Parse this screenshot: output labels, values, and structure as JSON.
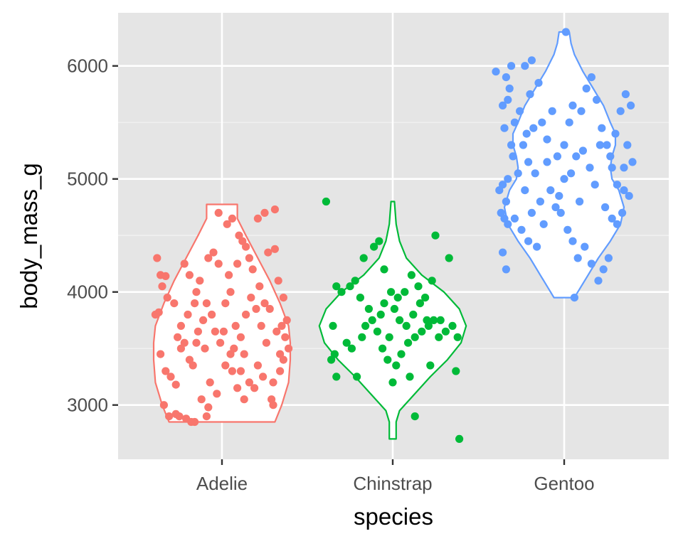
{
  "chart_data": {
    "type": "violin",
    "title": "",
    "xlabel": "species",
    "ylabel": "body_mass_g",
    "categories": [
      "Adelie",
      "Chinstrap",
      "Gentoo"
    ],
    "ylim": [
      2520,
      6470
    ],
    "yticks": [
      3000,
      4000,
      5000,
      6000
    ],
    "ytick_labels": [
      "3000",
      "4000",
      "5000",
      "6000"
    ],
    "grid": true,
    "legend": "none",
    "panel_background": "#e5e5e5",
    "series": [
      {
        "category": "Adelie",
        "color": "#f8766d",
        "range": [
          2850,
          4775
        ],
        "density_profile": [
          [
            2850,
            0.31
          ],
          [
            3000,
            0.35
          ],
          [
            3200,
            0.39
          ],
          [
            3400,
            0.4
          ],
          [
            3550,
            0.4
          ],
          [
            3700,
            0.39
          ],
          [
            3900,
            0.34
          ],
          [
            4100,
            0.28
          ],
          [
            4300,
            0.21
          ],
          [
            4500,
            0.14
          ],
          [
            4650,
            0.09
          ],
          [
            4775,
            0.09
          ]
        ],
        "points": [
          [
            -0.38,
            4300
          ],
          [
            -0.36,
            4150
          ],
          [
            -0.33,
            4140
          ],
          [
            -0.35,
            4050
          ],
          [
            -0.39,
            3800
          ],
          [
            -0.37,
            3820
          ],
          [
            -0.32,
            3950
          ],
          [
            -0.28,
            3900
          ],
          [
            -0.36,
            3450
          ],
          [
            -0.33,
            3300
          ],
          [
            -0.3,
            3250
          ],
          [
            -0.27,
            3180
          ],
          [
            -0.34,
            3000
          ],
          [
            -0.31,
            2900
          ],
          [
            -0.27,
            2920
          ],
          [
            -0.25,
            2900
          ],
          [
            -0.21,
            2880
          ],
          [
            -0.18,
            2850
          ],
          [
            -0.16,
            2850
          ],
          [
            -0.26,
            3600
          ],
          [
            -0.24,
            3700
          ],
          [
            -0.22,
            3550
          ],
          [
            -0.19,
            3400
          ],
          [
            -0.17,
            3350
          ],
          [
            -0.22,
            4250
          ],
          [
            -0.19,
            4150
          ],
          [
            -0.15,
            4000
          ],
          [
            -0.13,
            4100
          ],
          [
            -0.08,
            4300
          ],
          [
            -0.05,
            4350
          ],
          [
            -0.02,
            4700
          ],
          [
            0.03,
            4600
          ],
          [
            0.06,
            4650
          ],
          [
            0.09,
            4250
          ],
          [
            0.12,
            4450
          ],
          [
            0.1,
            4500
          ],
          [
            0.14,
            4400
          ],
          [
            0.21,
            4650
          ],
          [
            0.25,
            4700
          ],
          [
            0.31,
            4730
          ],
          [
            0.27,
            4350
          ],
          [
            0.31,
            4380
          ],
          [
            0.33,
            4100
          ],
          [
            0.36,
            3950
          ],
          [
            0.38,
            3750
          ],
          [
            0.35,
            3700
          ],
          [
            0.37,
            3600
          ],
          [
            0.39,
            3500
          ],
          [
            0.36,
            3400
          ],
          [
            0.34,
            3300
          ],
          [
            0.3,
            3200
          ],
          [
            0.29,
            3050
          ],
          [
            0.3,
            3000
          ],
          [
            0.24,
            3250
          ],
          [
            0.21,
            3350
          ],
          [
            0.19,
            3150
          ],
          [
            0.16,
            3200
          ],
          [
            0.13,
            3050
          ],
          [
            0.11,
            3300
          ],
          [
            0.07,
            3500
          ],
          [
            0.05,
            3450
          ],
          [
            0.02,
            3350
          ],
          [
            -0.01,
            3550
          ],
          [
            -0.04,
            3650
          ],
          [
            -0.06,
            3800
          ],
          [
            -0.09,
            3900
          ],
          [
            -0.11,
            3750
          ],
          [
            -0.14,
            3650
          ],
          [
            -0.1,
            3500
          ],
          [
            -0.07,
            3200
          ],
          [
            -0.03,
            3100
          ],
          [
            -0.12,
            3050
          ],
          [
            -0.08,
            2980
          ],
          [
            -0.09,
            2900
          ],
          [
            0.02,
            3900
          ],
          [
            0.05,
            4000
          ],
          [
            0.08,
            3700
          ],
          [
            0.11,
            3600
          ],
          [
            0.14,
            3800
          ],
          [
            0.17,
            3950
          ],
          [
            0.2,
            3850
          ],
          [
            0.23,
            3700
          ],
          [
            0.26,
            3550
          ],
          [
            0.28,
            3850
          ],
          [
            0.22,
            4050
          ],
          [
            0.18,
            4200
          ],
          [
            0.16,
            4300
          ],
          [
            0.04,
            4150
          ],
          [
            -0.02,
            4250
          ],
          [
            -0.16,
            3900
          ],
          [
            -0.2,
            3800
          ],
          [
            -0.24,
            3500
          ],
          [
            -0.15,
            3550
          ],
          [
            0.01,
            3650
          ],
          [
            0.06,
            3300
          ],
          [
            0.09,
            3150
          ],
          [
            0.13,
            3450
          ],
          [
            0.25,
            3900
          ],
          [
            0.32,
            3650
          ],
          [
            0.34,
            3450
          ]
        ]
      },
      {
        "category": "Chinstrap",
        "color": "#00ba38",
        "range": [
          2700,
          4800
        ],
        "density_profile": [
          [
            2700,
            0.02
          ],
          [
            2850,
            0.02
          ],
          [
            2950,
            0.04
          ],
          [
            3100,
            0.13
          ],
          [
            3250,
            0.22
          ],
          [
            3400,
            0.32
          ],
          [
            3550,
            0.4
          ],
          [
            3700,
            0.43
          ],
          [
            3850,
            0.39
          ],
          [
            4000,
            0.3
          ],
          [
            4150,
            0.17
          ],
          [
            4300,
            0.08
          ],
          [
            4450,
            0.04
          ],
          [
            4600,
            0.02
          ],
          [
            4800,
            0.01
          ]
        ],
        "points": [
          [
            -0.39,
            4800
          ],
          [
            -0.33,
            4050
          ],
          [
            -0.3,
            4000
          ],
          [
            -0.35,
            3700
          ],
          [
            -0.36,
            3400
          ],
          [
            -0.34,
            3450
          ],
          [
            -0.33,
            3250
          ],
          [
            -0.27,
            3550
          ],
          [
            -0.24,
            3500
          ],
          [
            -0.21,
            3250
          ],
          [
            -0.18,
            3600
          ],
          [
            -0.16,
            3700
          ],
          [
            -0.12,
            3750
          ],
          [
            -0.09,
            3650
          ],
          [
            -0.06,
            3500
          ],
          [
            -0.03,
            3400
          ],
          [
            0.0,
            3200
          ],
          [
            0.02,
            3350
          ],
          [
            0.05,
            3450
          ],
          [
            0.09,
            3550
          ],
          [
            0.13,
            3600
          ],
          [
            0.17,
            3650
          ],
          [
            0.21,
            3700
          ],
          [
            0.24,
            3750
          ],
          [
            0.27,
            3600
          ],
          [
            0.31,
            3650
          ],
          [
            0.35,
            3700
          ],
          [
            0.38,
            3600
          ],
          [
            0.37,
            3300
          ],
          [
            0.39,
            2700
          ],
          [
            0.13,
            2900
          ],
          [
            0.33,
            4300
          ],
          [
            0.25,
            4500
          ],
          [
            0.23,
            4100
          ],
          [
            0.19,
            3950
          ],
          [
            0.15,
            4050
          ],
          [
            0.11,
            4150
          ],
          [
            0.07,
            4000
          ],
          [
            0.03,
            3950
          ],
          [
            -0.01,
            4000
          ],
          [
            -0.05,
            3900
          ],
          [
            -0.08,
            4450
          ],
          [
            -0.17,
            4300
          ],
          [
            -0.11,
            4400
          ],
          [
            -0.05,
            4200
          ],
          [
            0.01,
            3850
          ],
          [
            -0.14,
            3850
          ],
          [
            -0.19,
            3950
          ],
          [
            -0.22,
            4100
          ],
          [
            -0.25,
            4050
          ],
          [
            0.04,
            3750
          ],
          [
            0.08,
            3700
          ],
          [
            0.12,
            3800
          ],
          [
            0.16,
            3900
          ],
          [
            0.2,
            3750
          ],
          [
            -0.02,
            3600
          ],
          [
            -0.07,
            3800
          ],
          [
            0.1,
            3250
          ],
          [
            0.22,
            3350
          ],
          [
            0.28,
            3750
          ]
        ]
      },
      {
        "category": "Gentoo",
        "color": "#619cff",
        "range": [
          3950,
          6300
        ],
        "density_profile": [
          [
            3950,
            0.06
          ],
          [
            4050,
            0.1
          ],
          [
            4150,
            0.14
          ],
          [
            4300,
            0.2
          ],
          [
            4450,
            0.27
          ],
          [
            4600,
            0.33
          ],
          [
            4750,
            0.35
          ],
          [
            4900,
            0.32
          ],
          [
            5000,
            0.28
          ],
          [
            5100,
            0.27
          ],
          [
            5200,
            0.28
          ],
          [
            5300,
            0.3
          ],
          [
            5400,
            0.3
          ],
          [
            5500,
            0.27
          ],
          [
            5650,
            0.23
          ],
          [
            5800,
            0.17
          ],
          [
            5950,
            0.11
          ],
          [
            6100,
            0.06
          ],
          [
            6200,
            0.04
          ],
          [
            6300,
            0.03
          ]
        ],
        "points": [
          [
            -0.4,
            5950
          ],
          [
            -0.34,
            5900
          ],
          [
            -0.31,
            6000
          ],
          [
            -0.33,
            5700
          ],
          [
            -0.36,
            5650
          ],
          [
            -0.32,
            5800
          ],
          [
            -0.29,
            5500
          ],
          [
            -0.35,
            5450
          ],
          [
            -0.31,
            5300
          ],
          [
            -0.3,
            5200
          ],
          [
            -0.33,
            5000
          ],
          [
            -0.36,
            4950
          ],
          [
            -0.38,
            4900
          ],
          [
            -0.34,
            4800
          ],
          [
            -0.37,
            4700
          ],
          [
            -0.35,
            4650
          ],
          [
            -0.33,
            4600
          ],
          [
            -0.36,
            4350
          ],
          [
            -0.34,
            4200
          ],
          [
            -0.23,
            6000
          ],
          [
            -0.19,
            6050
          ],
          [
            -0.15,
            5850
          ],
          [
            -0.2,
            5750
          ],
          [
            -0.26,
            5600
          ],
          [
            -0.22,
            5400
          ],
          [
            -0.18,
            5450
          ],
          [
            -0.24,
            5300
          ],
          [
            -0.21,
            5150
          ],
          [
            -0.17,
            5050
          ],
          [
            -0.23,
            4900
          ],
          [
            -0.19,
            4700
          ],
          [
            -0.25,
            4550
          ],
          [
            -0.21,
            4450
          ],
          [
            -0.16,
            4400
          ],
          [
            -0.12,
            4600
          ],
          [
            -0.08,
            4900
          ],
          [
            -0.04,
            5200
          ],
          [
            0.0,
            5300
          ],
          [
            0.03,
            5500
          ],
          [
            0.05,
            5650
          ],
          [
            0.1,
            5600
          ],
          [
            0.13,
            5800
          ],
          [
            0.16,
            5900
          ],
          [
            0.19,
            5700
          ],
          [
            0.22,
            5450
          ],
          [
            0.25,
            5300
          ],
          [
            0.28,
            5100
          ],
          [
            0.31,
            4950
          ],
          [
            0.35,
            4900
          ],
          [
            0.38,
            4850
          ],
          [
            0.3,
            5400
          ],
          [
            0.33,
            5600
          ],
          [
            0.36,
            5750
          ],
          [
            0.39,
            5650
          ],
          [
            0.37,
            5300
          ],
          [
            0.4,
            5150
          ],
          [
            0.34,
            4700
          ],
          [
            0.31,
            4600
          ],
          [
            0.26,
            4300
          ],
          [
            0.23,
            4200
          ],
          [
            0.2,
            4100
          ],
          [
            0.16,
            4250
          ],
          [
            0.12,
            4400
          ],
          [
            0.08,
            4300
          ],
          [
            0.05,
            4450
          ],
          [
            0.02,
            4550
          ],
          [
            -0.02,
            4700
          ],
          [
            -0.05,
            4750
          ],
          [
            0.0,
            5000
          ],
          [
            0.04,
            5050
          ],
          [
            0.07,
            5200
          ],
          [
            0.11,
            5250
          ],
          [
            0.15,
            5100
          ],
          [
            0.18,
            4950
          ],
          [
            0.24,
            4750
          ],
          [
            0.28,
            4650
          ],
          [
            0.06,
            3950
          ],
          [
            0.01,
            6300
          ],
          [
            -0.1,
            5350
          ],
          [
            -0.13,
            5500
          ],
          [
            -0.07,
            5600
          ],
          [
            -0.1,
            5150
          ],
          [
            -0.14,
            4800
          ],
          [
            -0.03,
            4850
          ],
          [
            0.09,
            4800
          ],
          [
            -0.27,
            5050
          ],
          [
            -0.29,
            4650
          ],
          [
            0.21,
            5300
          ],
          [
            0.27,
            5200
          ],
          [
            0.35,
            5100
          ]
        ]
      }
    ]
  }
}
